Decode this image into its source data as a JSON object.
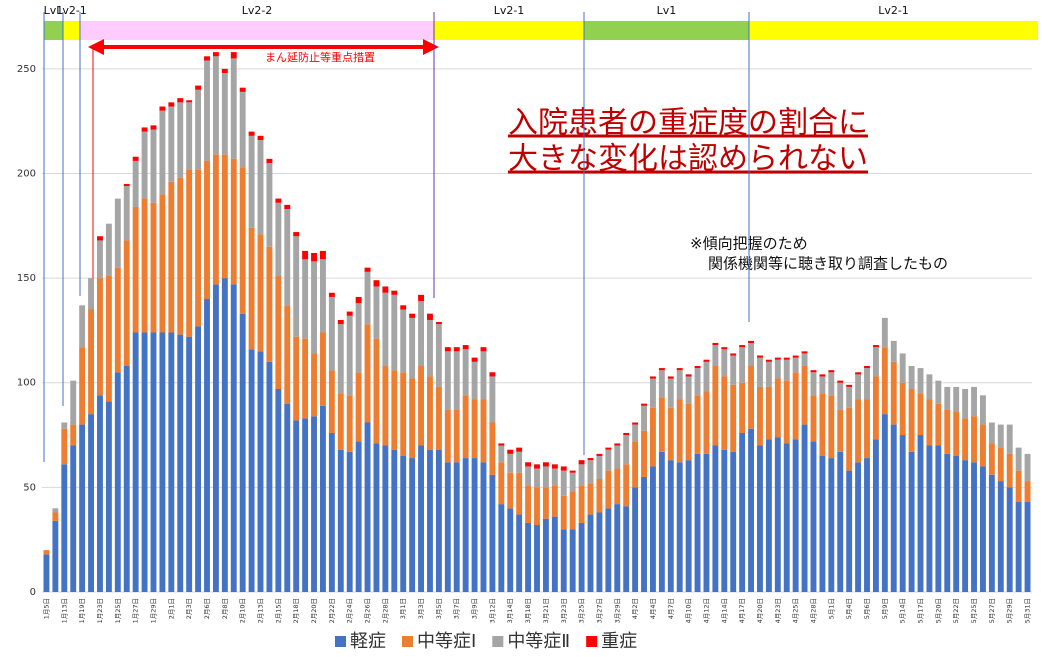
{
  "chart_data": {
    "type": "stacked_bar",
    "phases": [
      {
        "label": "Lv1",
        "color": "#92d050"
      },
      {
        "label": "Lv2-1",
        "color": "#ffff00"
      },
      {
        "label": "Lv2-2",
        "color": "#ffccff"
      },
      {
        "label": "Lv2-1",
        "color": "#ffff00"
      },
      {
        "label": "Lv1",
        "color": "#92d050"
      },
      {
        "label": "Lv2-1",
        "color": "#ffff00"
      }
    ],
    "period_annotation": "まん延防止等重点措置",
    "headline": [
      "入院患者の重症度の割合に",
      "大きな変化は認められない"
    ],
    "note": [
      "※傾向把握のため",
      "関係機関等に聴き取り調査したもの"
    ],
    "categories": [
      "1月5日",
      null,
      "1月13日",
      null,
      "1月19日",
      null,
      "1月23日",
      null,
      "1月25日",
      null,
      "1月27日",
      null,
      "1月29日",
      null,
      "2月1日",
      null,
      "2月3日",
      null,
      "2月6日",
      null,
      "2月8日",
      null,
      "2月10日",
      null,
      "2月13日",
      null,
      "2月15日",
      null,
      "2月18日",
      null,
      "2月20日",
      null,
      "2月22日",
      null,
      "2月24日",
      null,
      "2月26日",
      null,
      "2月28日",
      null,
      "3月1日",
      null,
      "3月3日",
      null,
      "3月5日",
      null,
      "3月7日",
      null,
      "3月9日",
      null,
      "3月12日",
      null,
      "3月14日",
      null,
      "3月18日",
      null,
      "3月21日",
      null,
      "3月23日",
      null,
      "3月25日",
      null,
      "3月27日",
      null,
      "3月29日",
      null,
      "4月2日",
      null,
      "4月4日",
      null,
      "4月7日",
      null,
      "4月10日",
      null,
      "4月12日",
      null,
      "4月14日",
      null,
      "4月17日",
      null,
      "4月20日",
      null,
      "4月23日",
      null,
      "4月25日",
      null,
      "4月28日",
      null,
      "5月1日",
      null,
      "5月4日",
      null,
      "5月6日",
      null,
      "5月9日",
      null,
      "5月14日",
      null,
      "5月17日",
      null,
      "5月20日",
      null,
      "5月22日",
      null,
      "5月25日",
      null,
      "5月27日",
      null,
      "5月29日",
      null,
      "5月31日"
    ],
    "series": [
      {
        "name": "軽症",
        "color": "#4472c4",
        "values": [
          18,
          34,
          61,
          70,
          80,
          85,
          94,
          91,
          105,
          108,
          124,
          124,
          124,
          124,
          124,
          123,
          122,
          127,
          140,
          147,
          150,
          147,
          133,
          116,
          115,
          110,
          97,
          90,
          82,
          83,
          84,
          89,
          76,
          68,
          67,
          72,
          81,
          71,
          70,
          68,
          65,
          64,
          70,
          68,
          68,
          62,
          62,
          64,
          64,
          62,
          56,
          42,
          40,
          37,
          33,
          32,
          35,
          36,
          30,
          30,
          33,
          37,
          38,
          40,
          42,
          41,
          50,
          55,
          60,
          67,
          63,
          62,
          63,
          66,
          66,
          70,
          68,
          67,
          76,
          78,
          70,
          73,
          74,
          71,
          73,
          80,
          72,
          65,
          64,
          67,
          58,
          62,
          64,
          73,
          85,
          80,
          75,
          67,
          75,
          70,
          70,
          66,
          65,
          63,
          62,
          60,
          56,
          53,
          50,
          43,
          43
        ]
      },
      {
        "name": "中等症Ⅰ",
        "color": "#ed7d31",
        "values": [
          2,
          4,
          17,
          10,
          37,
          50,
          56,
          60,
          50,
          60,
          60,
          64,
          62,
          66,
          72,
          75,
          80,
          75,
          66,
          62,
          59,
          60,
          70,
          58,
          56,
          55,
          54,
          47,
          40,
          38,
          30,
          35,
          30,
          27,
          27,
          33,
          47,
          50,
          38,
          38,
          40,
          38,
          38,
          35,
          30,
          25,
          25,
          30,
          28,
          30,
          25,
          20,
          17,
          20,
          18,
          18,
          15,
          15,
          16,
          18,
          18,
          15,
          16,
          18,
          17,
          20,
          22,
          22,
          28,
          26,
          25,
          30,
          27,
          28,
          30,
          38,
          35,
          32,
          24,
          30,
          28,
          25,
          28,
          30,
          32,
          28,
          22,
          30,
          30,
          20,
          30,
          30,
          28,
          30,
          32,
          30,
          25,
          30,
          20,
          22,
          20,
          21,
          21,
          20,
          22,
          20,
          15,
          16,
          16,
          15,
          10
        ]
      },
      {
        "name": "中等症Ⅱ",
        "color": "#a5a5a5",
        "values": [
          0,
          2,
          3,
          21,
          20,
          15,
          18,
          25,
          33,
          26,
          22,
          32,
          35,
          40,
          36,
          36,
          32,
          38,
          48,
          47,
          39,
          48,
          36,
          44,
          45,
          40,
          35,
          46,
          48,
          38,
          44,
          35,
          35,
          33,
          38,
          33,
          25,
          25,
          35,
          36,
          30,
          29,
          31,
          27,
          30,
          28,
          28,
          22,
          18,
          23,
          22,
          8,
          9,
          10,
          9,
          9,
          10,
          8,
          12,
          9,
          10,
          11,
          11,
          10,
          11,
          14,
          8,
          12,
          14,
          13,
          14,
          14,
          13,
          13,
          14,
          10,
          13,
          14,
          17,
          11,
          14,
          12,
          9,
          10,
          7,
          6,
          11,
          8,
          11,
          13,
          10,
          12,
          15,
          14,
          14,
          10,
          14,
          11,
          12,
          12,
          11,
          11,
          12,
          14,
          14,
          14,
          10,
          11,
          14,
          11,
          13
        ]
      },
      {
        "name": "重症",
        "color": "#ff0000",
        "values": [
          0,
          0,
          0,
          0,
          0,
          0,
          2,
          0,
          0,
          1,
          2,
          2,
          2,
          2,
          2,
          2,
          1,
          2,
          2,
          2,
          2,
          3,
          2,
          2,
          2,
          2,
          2,
          2,
          2,
          4,
          4,
          4,
          2,
          2,
          2,
          3,
          2,
          3,
          3,
          2,
          2,
          2,
          3,
          3,
          1,
          2,
          2,
          2,
          2,
          2,
          2,
          1,
          2,
          2,
          2,
          2,
          2,
          2,
          2,
          1,
          2,
          1,
          1,
          1,
          1,
          1,
          1,
          1,
          1,
          1,
          1,
          1,
          1,
          1,
          1,
          1,
          1,
          1,
          1,
          1,
          1,
          1,
          1,
          1,
          1,
          1,
          1,
          1,
          1,
          1,
          1,
          1,
          1,
          1,
          0,
          0,
          0,
          0,
          0,
          0,
          0,
          0,
          0,
          0,
          0,
          0,
          0,
          0,
          0,
          0,
          0
        ]
      }
    ],
    "ylim": [
      0,
      270
    ],
    "yticks": [
      0,
      50,
      100,
      150,
      200,
      250
    ],
    "grid": true
  }
}
